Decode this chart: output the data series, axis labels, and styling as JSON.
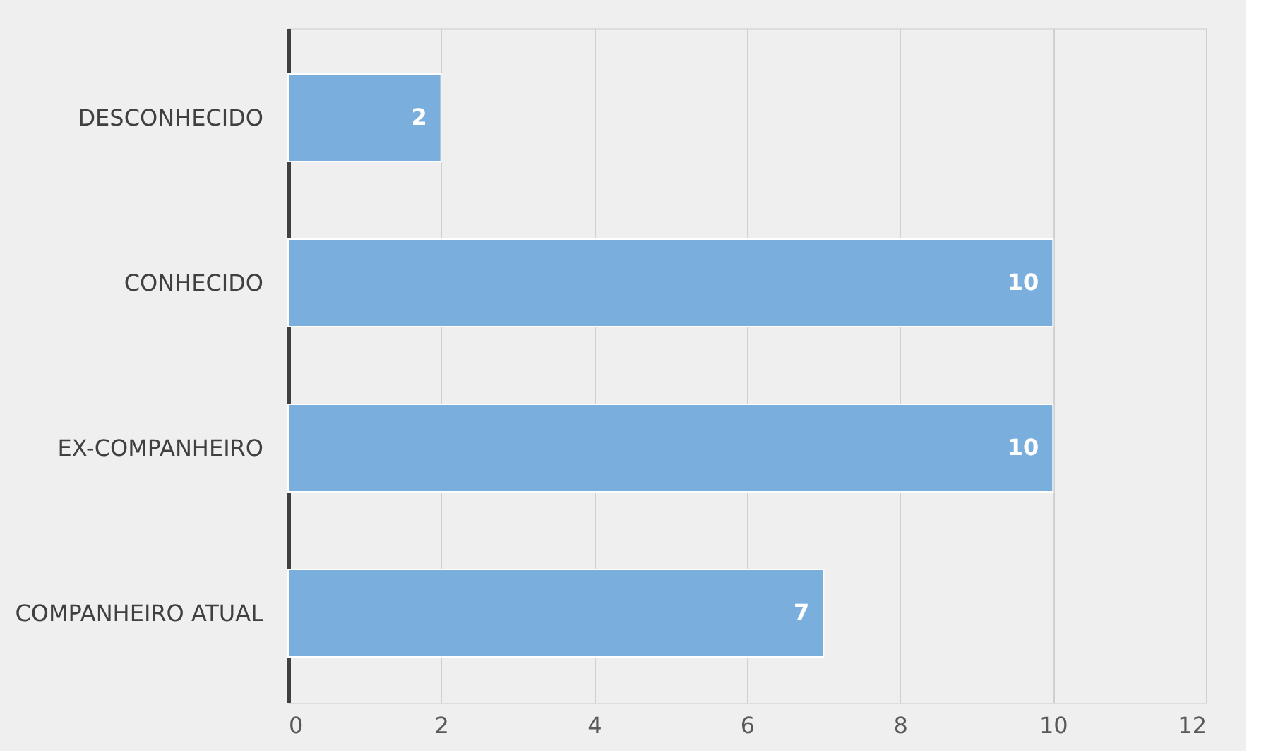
{
  "chart_data": {
    "type": "bar",
    "orientation": "horizontal",
    "categories": [
      "DESCONHECIDO",
      "CONHECIDO",
      "EX-COMPANHEIRO",
      "COMPANHEIRO ATUAL"
    ],
    "values": [
      2,
      10,
      10,
      7
    ],
    "color": "#7aaedc",
    "xlim": [
      0,
      12
    ],
    "xticks": [
      0,
      2,
      4,
      6,
      8,
      10,
      12
    ],
    "grid": "x",
    "data_labels": true
  }
}
